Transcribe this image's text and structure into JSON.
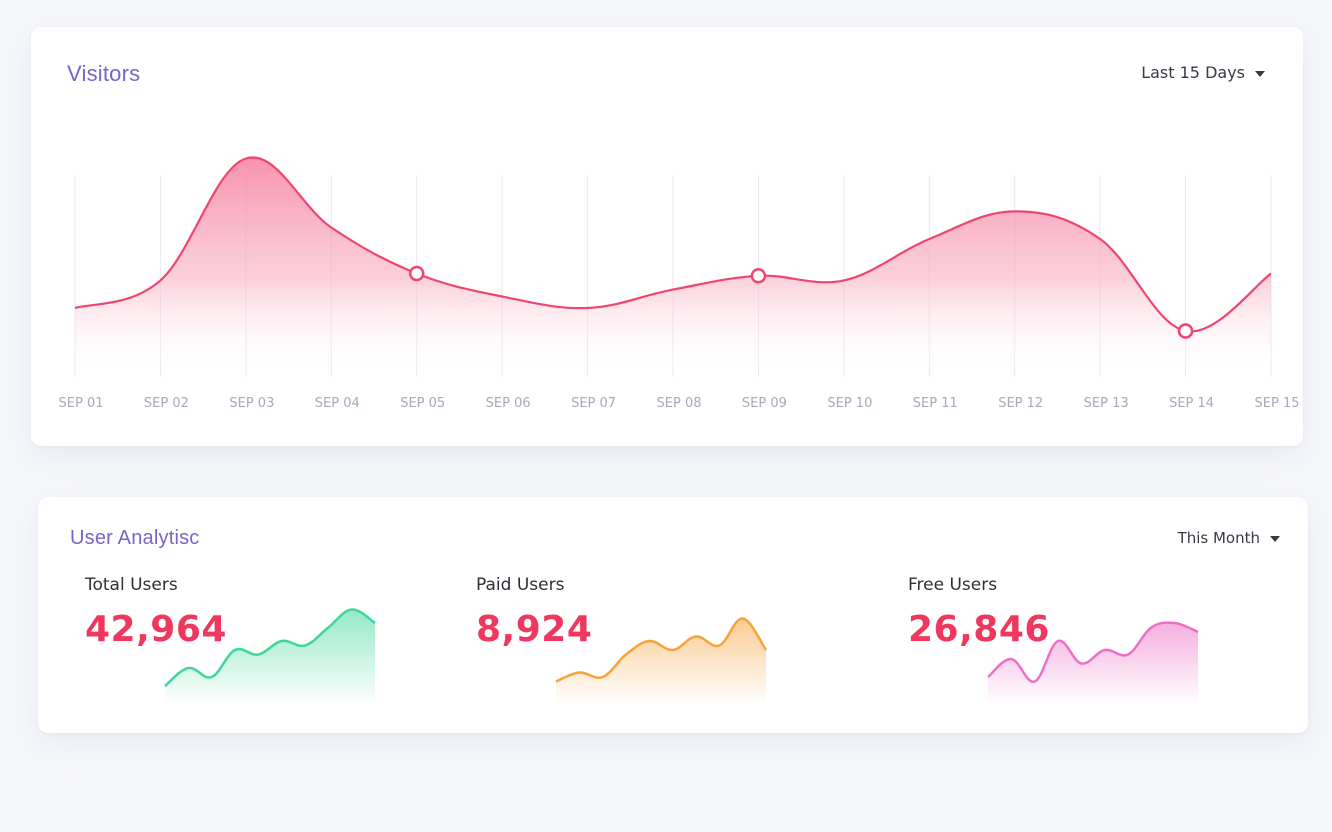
{
  "visitors": {
    "title": "Visitors",
    "range_label": "Last 15 Days",
    "chart_data": {
      "type": "area",
      "x": [
        "SEP 01",
        "SEP 02",
        "SEP 03",
        "SEP 04",
        "SEP 05",
        "SEP 06",
        "SEP 07",
        "SEP 08",
        "SEP 09",
        "SEP 10",
        "SEP 11",
        "SEP 12",
        "SEP 13",
        "SEP 14",
        "SEP 15"
      ],
      "values": [
        30,
        42,
        95,
        65,
        45,
        35,
        30,
        38,
        44,
        42,
        60,
        72,
        60,
        20,
        45
      ],
      "highlighted_points": [
        "SEP 05",
        "SEP 09",
        "SEP 14"
      ],
      "grid": true,
      "line_color": "#f0456f",
      "fill_color": "#f7a3b8"
    }
  },
  "analytics": {
    "title": "User Analytisc",
    "range_label": "This Month",
    "stats": [
      {
        "label": "Total Users",
        "value": "42,964",
        "color": "#3fd69a",
        "trend": [
          4,
          12,
          8,
          20,
          18,
          24,
          22,
          30,
          38,
          32
        ]
      },
      {
        "label": "Paid Users",
        "value": "8,924",
        "color": "#f7a23b",
        "trend": [
          6,
          10,
          8,
          18,
          24,
          20,
          26,
          22,
          34,
          20
        ]
      },
      {
        "label": "Free Users",
        "value": "26,846",
        "color": "#ee6fc6",
        "trend": [
          8,
          16,
          6,
          24,
          14,
          20,
          18,
          30,
          32,
          28
        ]
      }
    ]
  }
}
